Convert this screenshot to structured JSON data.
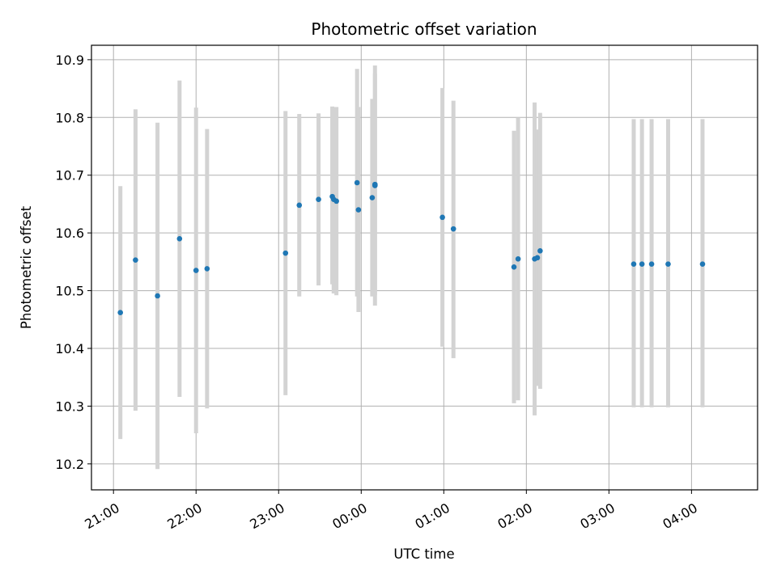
{
  "chart_data": {
    "type": "scatter",
    "title": "Photometric offset variation",
    "xlabel": "UTC time",
    "ylabel": "Photometric offset",
    "x_tick_labels": [
      "21:00",
      "22:00",
      "23:00",
      "00:00",
      "01:00",
      "02:00",
      "03:00",
      "04:00"
    ],
    "y_ticks": [
      10.2,
      10.3,
      10.4,
      10.5,
      10.6,
      10.7,
      10.8,
      10.9
    ],
    "y_tick_labels": [
      "10.2",
      "10.3",
      "10.4",
      "10.5",
      "10.6",
      "10.7",
      "10.8",
      "10.9"
    ],
    "xlim": [
      "20:44",
      "04:48"
    ],
    "ylim": [
      10.155,
      10.925
    ],
    "grid": true,
    "colors": {
      "marker": "#1f77b4",
      "errorbar": "#d3d3d3",
      "grid": "#b0b0b0"
    },
    "points": [
      {
        "x": "21:05",
        "y": 10.462,
        "low": 10.243,
        "high": 10.681
      },
      {
        "x": "21:16",
        "y": 10.553,
        "low": 10.292,
        "high": 10.814
      },
      {
        "x": "21:32",
        "y": 10.491,
        "low": 10.191,
        "high": 10.791
      },
      {
        "x": "21:48",
        "y": 10.59,
        "low": 10.316,
        "high": 10.864
      },
      {
        "x": "22:00",
        "y": 10.535,
        "low": 10.253,
        "high": 10.817
      },
      {
        "x": "22:08",
        "y": 10.538,
        "low": 10.296,
        "high": 10.78
      },
      {
        "x": "23:05",
        "y": 10.565,
        "low": 10.319,
        "high": 10.811
      },
      {
        "x": "23:15",
        "y": 10.648,
        "low": 10.49,
        "high": 10.806
      },
      {
        "x": "23:29",
        "y": 10.658,
        "low": 10.509,
        "high": 10.807
      },
      {
        "x": "23:39",
        "y": 10.663,
        "low": 10.511,
        "high": 10.819
      },
      {
        "x": "23:40",
        "y": 10.658,
        "low": 10.495,
        "high": 10.817
      },
      {
        "x": "23:42",
        "y": 10.655,
        "low": 10.492,
        "high": 10.818
      },
      {
        "x": "23:57",
        "y": 10.687,
        "low": 10.49,
        "high": 10.884
      },
      {
        "x": "23:58",
        "y": 10.64,
        "low": 10.463,
        "high": 10.818
      },
      {
        "x": "00:08",
        "y": 10.661,
        "low": 10.49,
        "high": 10.832
      },
      {
        "x": "00:10",
        "y": 10.682,
        "low": 10.474,
        "high": 10.89
      },
      {
        "x": "00:10",
        "y": 10.684,
        "low": 10.492,
        "high": 10.876
      },
      {
        "x": "00:59",
        "y": 10.627,
        "low": 10.403,
        "high": 10.851
      },
      {
        "x": "01:07",
        "y": 10.607,
        "low": 10.383,
        "high": 10.829
      },
      {
        "x": "01:51",
        "y": 10.541,
        "low": 10.305,
        "high": 10.777
      },
      {
        "x": "01:54",
        "y": 10.555,
        "low": 10.31,
        "high": 10.8
      },
      {
        "x": "02:06",
        "y": 10.555,
        "low": 10.284,
        "high": 10.826
      },
      {
        "x": "02:08",
        "y": 10.557,
        "low": 10.335,
        "high": 10.779
      },
      {
        "x": "02:10",
        "y": 10.569,
        "low": 10.33,
        "high": 10.808
      },
      {
        "x": "03:18",
        "y": 10.546,
        "low": 10.298,
        "high": 10.797
      },
      {
        "x": "03:24",
        "y": 10.546,
        "low": 10.298,
        "high": 10.797
      },
      {
        "x": "03:31",
        "y": 10.546,
        "low": 10.298,
        "high": 10.797
      },
      {
        "x": "03:43",
        "y": 10.546,
        "low": 10.298,
        "high": 10.797
      },
      {
        "x": "04:08",
        "y": 10.546,
        "low": 10.298,
        "high": 10.797
      }
    ]
  }
}
